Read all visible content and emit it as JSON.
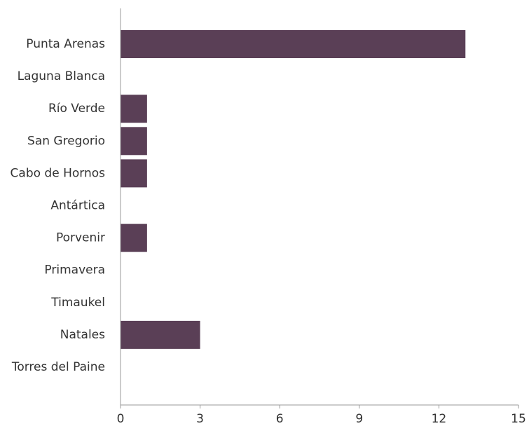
{
  "chart_data": {
    "type": "bar",
    "orientation": "horizontal",
    "categories": [
      "Punta Arenas",
      "Laguna Blanca",
      "Río Verde",
      "San Gregorio",
      "Cabo de Hornos",
      "Antártica",
      "Porvenir",
      "Primavera",
      "Timaukel",
      "Natales",
      "Torres del Paine"
    ],
    "values": [
      13,
      0,
      1,
      1,
      1,
      0,
      1,
      0,
      0,
      3,
      0
    ],
    "color": "#5a3f56",
    "xlim": [
      0,
      15
    ],
    "xticks": [
      0,
      3,
      6,
      9,
      12,
      15
    ],
    "grid": false
  }
}
